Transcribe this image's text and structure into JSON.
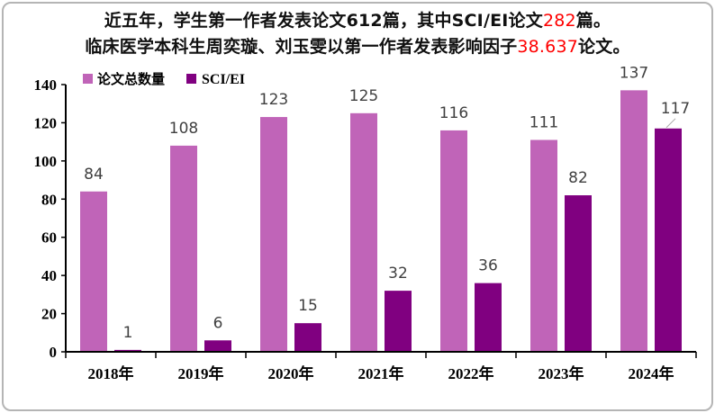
{
  "header": {
    "line1_part1": "近五年，学生第一作者发表论文612篇，其中SCI/EI论文",
    "line1_red": "282",
    "line1_part2": "篇。",
    "line2_part1": "临床医学本科生周奕璇、刘玉雯以第一作者发表影响因子",
    "line2_red": "38.637",
    "line2_part2": "论文。"
  },
  "colors": {
    "series1": "#c064b8",
    "series2": "#800080",
    "highlight_label": "#ff0000",
    "data_label": "#404040"
  },
  "chart_data": {
    "type": "bar",
    "categories": [
      "2018年",
      "2019年",
      "2020年",
      "2021年",
      "2022年",
      "2023年",
      "2024年"
    ],
    "series": [
      {
        "name": "论文总数量",
        "values": [
          84,
          108,
          123,
          125,
          116,
          111,
          137
        ]
      },
      {
        "name": "SCI/EI",
        "values": [
          1,
          6,
          15,
          32,
          36,
          82,
          117
        ]
      }
    ],
    "ylim": [
      0,
      140
    ],
    "yticks": [
      "0",
      "20",
      "40",
      "60",
      "80",
      "100",
      "120",
      "140"
    ],
    "legend_position": "top-left",
    "grid": false,
    "highlighted_label": {
      "series": 1,
      "index": 6
    }
  }
}
